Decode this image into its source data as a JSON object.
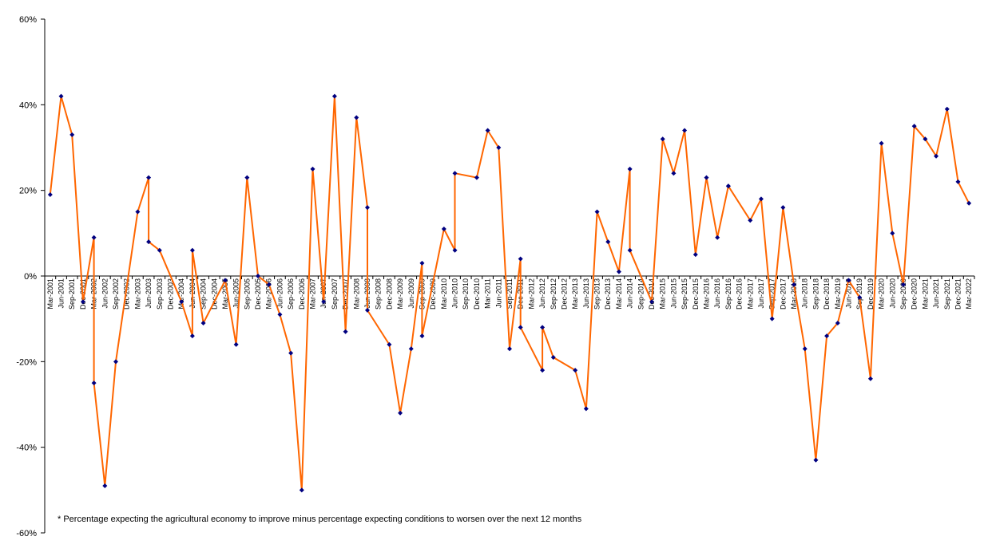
{
  "chart_data": {
    "type": "line",
    "title": "",
    "xlabel": "",
    "ylabel": "",
    "ylim": [
      -60,
      60
    ],
    "y_ticks": [
      "60%",
      "40%",
      "20%",
      "0%",
      "-20%",
      "-40%",
      "-60%"
    ],
    "y_tick_values": [
      60,
      40,
      20,
      0,
      -20,
      -40,
      -60
    ],
    "grid": false,
    "legend": "none",
    "note": "* Percentage expecting the agricultural economy to improve minus percentage expecting conditions to worsen over the next 12 months",
    "line_color": "#ff6600",
    "marker_color": "#000080",
    "x": [
      "Mar-2001",
      "Jun-2001",
      "Sep-2001",
      "Dec-2001",
      "Mar-2002",
      "Jun-2002",
      "Sep-2002",
      "Dec-2002",
      "Mar-2003",
      "Jun-2003",
      "Sep-2003",
      "Dec-2003",
      "Mar-2004",
      "Jun-2004",
      "Sep-2004",
      "Dec-2004",
      "Mar-2005",
      "Jun-2005",
      "Sep-2005",
      "Dec-2005",
      "Mar-2006",
      "Jun-2006",
      "Sep-2006",
      "Dec-2006",
      "Mar-2007",
      "Jun-2007",
      "Sep-2007",
      "Dec-2007",
      "Mar-2008",
      "Jun-2008",
      "Sep-2008",
      "Dec-2008",
      "Mar-2009",
      "Jun-2009",
      "Sep-2009",
      "Dec-2009",
      "Mar-2010",
      "Jun-2010",
      "Sep-2010",
      "Dec-2010",
      "Mar-2011",
      "Jun-2011",
      "Sep-2011",
      "Dec-2011",
      "Mar-2012",
      "Jun-2012",
      "Sep-2012",
      "Dec-2012",
      "Mar-2013",
      "Jun-2013",
      "Sep-2013",
      "Dec-2013",
      "Mar-2014",
      "Jun-2014",
      "Sep-2014",
      "Dec-2014",
      "Mar-2015",
      "Jun-2015",
      "Sep-2015",
      "Dec-2015",
      "Mar-2016",
      "Jun-2016",
      "Sep-2016",
      "Dec-2016",
      "Mar-2017",
      "Jun-2017",
      "Sep-2017",
      "Dec-2017",
      "Mar-2018",
      "Jun-2018",
      "Sep-2018",
      "Dec-2018",
      "Mar-2019",
      "Jun-2019",
      "Sep-2019",
      "Dec-2019",
      "Mar-2020",
      "Jun-2020",
      "Sep-2020",
      "Dec-2020",
      "Mar-2021",
      "Jun-2021",
      "Sep-2021",
      "Dec-2021",
      "Mar-2022"
    ],
    "series": [
      {
        "points": [
          {
            "x": "Mar-2001",
            "y": 19
          },
          {
            "x": "Jun-2001",
            "y": 42
          },
          {
            "x": "Sep-2001",
            "y": 33
          },
          {
            "x": "Dec-2001",
            "y": -6
          },
          {
            "x": "Mar-2002",
            "y": 9
          },
          {
            "x": "Mar-2002",
            "y": -25
          },
          {
            "x": "Jun-2002",
            "y": -49
          },
          {
            "x": "Sep-2002",
            "y": -20
          },
          {
            "x": "Mar-2003",
            "y": 15
          },
          {
            "x": "Jun-2003",
            "y": 23
          },
          {
            "x": "Jun-2003",
            "y": 8
          },
          {
            "x": "Sep-2003",
            "y": 6
          },
          {
            "x": "Mar-2004",
            "y": -6
          },
          {
            "x": "Jun-2004",
            "y": -14
          },
          {
            "x": "Jun-2004",
            "y": 6
          },
          {
            "x": "Sep-2004",
            "y": -11
          },
          {
            "x": "Mar-2005",
            "y": -1
          },
          {
            "x": "Jun-2005",
            "y": -16
          },
          {
            "x": "Sep-2005",
            "y": 23
          },
          {
            "x": "Dec-2005",
            "y": 0
          },
          {
            "x": "Mar-2006",
            "y": -2
          },
          {
            "x": "Jun-2006",
            "y": -9
          },
          {
            "x": "Sep-2006",
            "y": -18
          },
          {
            "x": "Dec-2006",
            "y": -50
          },
          {
            "x": "Mar-2007",
            "y": 25
          },
          {
            "x": "Jun-2007",
            "y": -6
          },
          {
            "x": "Sep-2007",
            "y": 42
          },
          {
            "x": "Dec-2007",
            "y": -13
          },
          {
            "x": "Mar-2008",
            "y": 37
          },
          {
            "x": "Jun-2008",
            "y": 16
          },
          {
            "x": "Jun-2008",
            "y": -8
          },
          {
            "x": "Dec-2008",
            "y": -16
          },
          {
            "x": "Mar-2009",
            "y": -32
          },
          {
            "x": "Jun-2009",
            "y": -17
          },
          {
            "x": "Sep-2009",
            "y": 3
          },
          {
            "x": "Sep-2009",
            "y": -14
          },
          {
            "x": "Mar-2010",
            "y": 11
          },
          {
            "x": "Jun-2010",
            "y": 6
          },
          {
            "x": "Jun-2010",
            "y": 24
          },
          {
            "x": "Dec-2010",
            "y": 23
          },
          {
            "x": "Mar-2011",
            "y": 34
          },
          {
            "x": "Jun-2011",
            "y": 30
          },
          {
            "x": "Sep-2011",
            "y": -17
          },
          {
            "x": "Dec-2011",
            "y": 4
          },
          {
            "x": "Dec-2011",
            "y": -12
          },
          {
            "x": "Jun-2012",
            "y": -22
          },
          {
            "x": "Jun-2012",
            "y": -12
          },
          {
            "x": "Sep-2012",
            "y": -19
          },
          {
            "x": "Mar-2013",
            "y": -22
          },
          {
            "x": "Jun-2013",
            "y": -31
          },
          {
            "x": "Sep-2013",
            "y": 15
          },
          {
            "x": "Dec-2013",
            "y": 8
          },
          {
            "x": "Mar-2014",
            "y": 1
          },
          {
            "x": "Jun-2014",
            "y": 25
          },
          {
            "x": "Jun-2014",
            "y": 6
          },
          {
            "x": "Dec-2014",
            "y": -6
          },
          {
            "x": "Mar-2015",
            "y": 32
          },
          {
            "x": "Jun-2015",
            "y": 24
          },
          {
            "x": "Sep-2015",
            "y": 34
          },
          {
            "x": "Dec-2015",
            "y": 5
          },
          {
            "x": "Mar-2016",
            "y": 23
          },
          {
            "x": "Jun-2016",
            "y": 9
          },
          {
            "x": "Sep-2016",
            "y": 21
          },
          {
            "x": "Sep-2016",
            "y": 21
          },
          {
            "x": "Mar-2017",
            "y": 13
          },
          {
            "x": "Jun-2017",
            "y": 18
          },
          {
            "x": "Sep-2017",
            "y": -10
          },
          {
            "x": "Dec-2017",
            "y": 16
          },
          {
            "x": "Mar-2018",
            "y": -2
          },
          {
            "x": "Jun-2018",
            "y": -17
          },
          {
            "x": "Sep-2018",
            "y": -43
          },
          {
            "x": "Dec-2018",
            "y": -14
          },
          {
            "x": "Mar-2019",
            "y": -11
          },
          {
            "x": "Jun-2019",
            "y": -1
          },
          {
            "x": "Sep-2019",
            "y": -5
          },
          {
            "x": "Dec-2019",
            "y": -24
          },
          {
            "x": "Mar-2020",
            "y": 31
          },
          {
            "x": "Jun-2020",
            "y": 10
          },
          {
            "x": "Sep-2020",
            "y": -2
          },
          {
            "x": "Dec-2020",
            "y": 35
          },
          {
            "x": "Mar-2021",
            "y": 32
          },
          {
            "x": "Jun-2021",
            "y": 28
          },
          {
            "x": "Sep-2021",
            "y": 39
          },
          {
            "x": "Dec-2021",
            "y": 22
          },
          {
            "x": "Mar-2022",
            "y": 17
          }
        ]
      }
    ]
  }
}
